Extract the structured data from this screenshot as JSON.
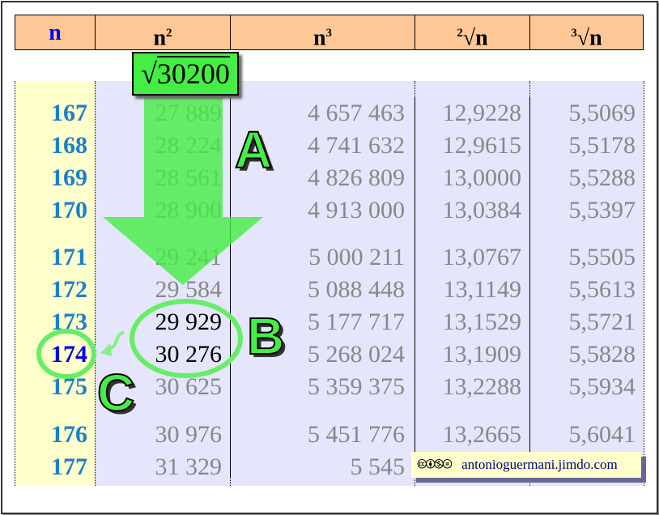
{
  "header": {
    "n": "n",
    "n2_base": "n",
    "n2_exp": "2",
    "n3_base": "n",
    "n3_exp": "3",
    "sqrt2_idx": "2",
    "sqrt2": "√n",
    "sqrt3_idx": "3",
    "sqrt3": "√n"
  },
  "sqrt_box": {
    "symbol": "√",
    "value": "30200"
  },
  "rows": [
    {
      "n": "167",
      "n2": "27 889",
      "n3": "4 657 463",
      "r2": "12,9228",
      "r3": "5,5069"
    },
    {
      "n": "168",
      "n2": "28 224",
      "n3": "4 741 632",
      "r2": "12,9615",
      "r3": "5,5178"
    },
    {
      "n": "169",
      "n2": "28 561",
      "n3": "4 826 809",
      "r2": "13,0000",
      "r3": "5,5288"
    },
    {
      "n": "170",
      "n2": "28 900",
      "n3": "4 913 000",
      "r2": "13,0384",
      "r3": "5,5397"
    },
    {
      "n": "171",
      "n2": "29 241",
      "n3": "5 000 211",
      "r2": "13,0767",
      "r3": "5,5505"
    },
    {
      "n": "172",
      "n2": "29 584",
      "n3": "5 088 448",
      "r2": "13,1149",
      "r3": "5,5613"
    },
    {
      "n": "173",
      "n2": "29 929",
      "n3": "5 177 717",
      "r2": "13,1529",
      "r3": "5,5721"
    },
    {
      "n": "174",
      "n2": "30 276",
      "n3": "5 268 024",
      "r2": "13,1909",
      "r3": "5,5828"
    },
    {
      "n": "175",
      "n2": "30 625",
      "n3": "5 359 375",
      "r2": "13,2288",
      "r3": "5,5934"
    },
    {
      "n": "176",
      "n2": "30 976",
      "n3": "5 451 776",
      "r2": "13,2665",
      "r3": "5,6041"
    },
    {
      "n": "177",
      "n2": "31 329",
      "n3": "5 545",
      "r2": "",
      "r3": ""
    }
  ],
  "labels": {
    "a": "A",
    "b": "B",
    "c": "C"
  },
  "credit": {
    "icons": "🅭🅯🄏⊜",
    "text": "antonioguermani.jimdo.com"
  },
  "colors": {
    "header": "#fdc896",
    "green": "#44ee44",
    "n_col": "#1a7fd0",
    "highlight_n": "#0000ee"
  }
}
